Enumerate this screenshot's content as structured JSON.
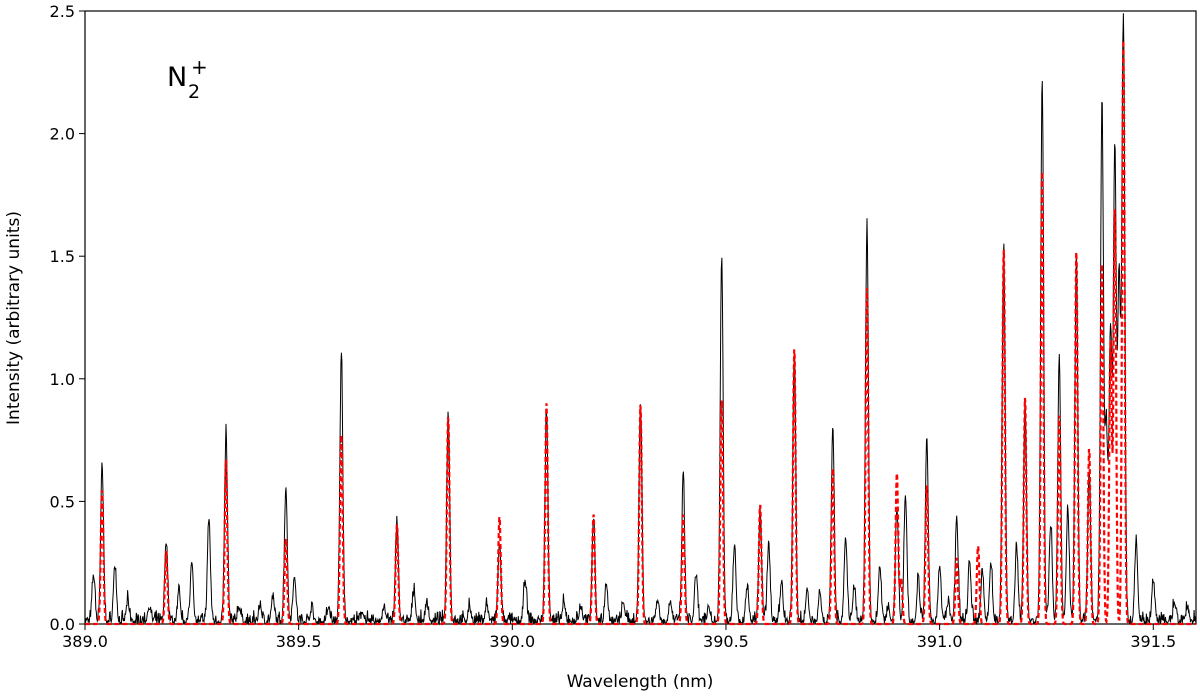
{
  "chart_data": {
    "type": "line",
    "title": "",
    "xlabel": "Wavelength (nm)",
    "ylabel": "Intensity (arbitrary units)",
    "xlim": [
      389.0,
      391.6
    ],
    "ylim": [
      0.0,
      2.5
    ],
    "xticks": [
      389.0,
      389.5,
      390.0,
      390.5,
      391.0,
      391.5
    ],
    "xtick_labels": [
      "389.0",
      "389.5",
      "390.0",
      "390.5",
      "391.0",
      "391.5"
    ],
    "yticks": [
      0.0,
      0.5,
      1.0,
      1.5,
      2.0,
      2.5
    ],
    "ytick_labels": [
      "0.0",
      "0.5",
      "1.0",
      "1.5",
      "2.0",
      "2.5"
    ],
    "grid": false,
    "annotation": {
      "base": "N",
      "subscript": "2",
      "superscript": "+"
    },
    "colors": {
      "measured": "#000000",
      "simulated": "#ff0000"
    },
    "series": [
      {
        "style": "solid",
        "peaks": [
          [
            389.02,
            0.19
          ],
          [
            389.04,
            0.63
          ],
          [
            389.07,
            0.23
          ],
          [
            389.1,
            0.08
          ],
          [
            389.15,
            0.06
          ],
          [
            389.19,
            0.33
          ],
          [
            389.22,
            0.12
          ],
          [
            389.25,
            0.25
          ],
          [
            389.29,
            0.42
          ],
          [
            389.33,
            0.77
          ],
          [
            389.36,
            0.06
          ],
          [
            389.41,
            0.07
          ],
          [
            389.44,
            0.09
          ],
          [
            389.47,
            0.55
          ],
          [
            389.49,
            0.19
          ],
          [
            389.53,
            0.05
          ],
          [
            389.57,
            0.06
          ],
          [
            389.6,
            1.1
          ],
          [
            389.65,
            0.04
          ],
          [
            389.7,
            0.06
          ],
          [
            389.73,
            0.41
          ],
          [
            389.77,
            0.13
          ],
          [
            389.8,
            0.08
          ],
          [
            389.85,
            0.85
          ],
          [
            389.9,
            0.06
          ],
          [
            389.94,
            0.07
          ],
          [
            389.97,
            0.32
          ],
          [
            390.03,
            0.17
          ],
          [
            390.08,
            0.86
          ],
          [
            390.12,
            0.07
          ],
          [
            390.16,
            0.06
          ],
          [
            390.19,
            0.43
          ],
          [
            390.22,
            0.16
          ],
          [
            390.26,
            0.08
          ],
          [
            390.3,
            0.9
          ],
          [
            390.34,
            0.09
          ],
          [
            390.37,
            0.08
          ],
          [
            390.4,
            0.59
          ],
          [
            390.43,
            0.19
          ],
          [
            390.46,
            0.06
          ],
          [
            390.49,
            1.49
          ],
          [
            390.52,
            0.32
          ],
          [
            390.55,
            0.14
          ],
          [
            390.58,
            0.45
          ],
          [
            390.6,
            0.32
          ],
          [
            390.63,
            0.16
          ],
          [
            390.66,
            1.1
          ],
          [
            390.69,
            0.13
          ],
          [
            390.72,
            0.11
          ],
          [
            390.75,
            0.8
          ],
          [
            390.78,
            0.35
          ],
          [
            390.8,
            0.14
          ],
          [
            390.83,
            1.63
          ],
          [
            390.86,
            0.22
          ],
          [
            390.88,
            0.06
          ],
          [
            390.9,
            0.46
          ],
          [
            390.92,
            0.52
          ],
          [
            390.95,
            0.17
          ],
          [
            390.97,
            0.74
          ],
          [
            391.0,
            0.22
          ],
          [
            391.02,
            0.08
          ],
          [
            391.04,
            0.43
          ],
          [
            391.07,
            0.24
          ],
          [
            391.1,
            0.2
          ],
          [
            391.12,
            0.24
          ],
          [
            391.15,
            1.54
          ],
          [
            391.18,
            0.3
          ],
          [
            391.2,
            0.9
          ],
          [
            391.24,
            2.21
          ],
          [
            391.26,
            0.4
          ],
          [
            391.28,
            1.07
          ],
          [
            391.3,
            0.45
          ],
          [
            391.32,
            1.49
          ],
          [
            391.35,
            0.62
          ],
          [
            391.38,
            2.13
          ],
          [
            391.39,
            0.8
          ],
          [
            391.4,
            1.19
          ],
          [
            391.41,
            1.93
          ],
          [
            391.42,
            1.4
          ],
          [
            391.43,
            2.47
          ],
          [
            391.46,
            0.34
          ],
          [
            391.5,
            0.16
          ],
          [
            391.55,
            0.08
          ],
          [
            391.58,
            0.06
          ]
        ]
      },
      {
        "style": "dashed",
        "peaks": [
          [
            389.04,
            0.55
          ],
          [
            389.19,
            0.3
          ],
          [
            389.33,
            0.67
          ],
          [
            389.47,
            0.35
          ],
          [
            389.6,
            0.77
          ],
          [
            389.73,
            0.41
          ],
          [
            389.85,
            0.85
          ],
          [
            389.97,
            0.44
          ],
          [
            390.08,
            0.9
          ],
          [
            390.19,
            0.45
          ],
          [
            390.3,
            0.9
          ],
          [
            390.4,
            0.45
          ],
          [
            390.49,
            0.92
          ],
          [
            390.58,
            0.49
          ],
          [
            390.66,
            1.13
          ],
          [
            390.75,
            0.64
          ],
          [
            390.83,
            1.37
          ],
          [
            390.9,
            0.62
          ],
          [
            390.91,
            0.18
          ],
          [
            390.97,
            0.57
          ],
          [
            391.04,
            0.27
          ],
          [
            391.09,
            0.32
          ],
          [
            391.15,
            1.54
          ],
          [
            391.2,
            0.93
          ],
          [
            391.24,
            1.86
          ],
          [
            391.28,
            0.85
          ],
          [
            391.32,
            1.53
          ],
          [
            391.35,
            0.72
          ],
          [
            391.38,
            1.48
          ],
          [
            391.4,
            1.15
          ],
          [
            391.41,
            1.7
          ],
          [
            391.43,
            2.38
          ]
        ]
      }
    ]
  }
}
